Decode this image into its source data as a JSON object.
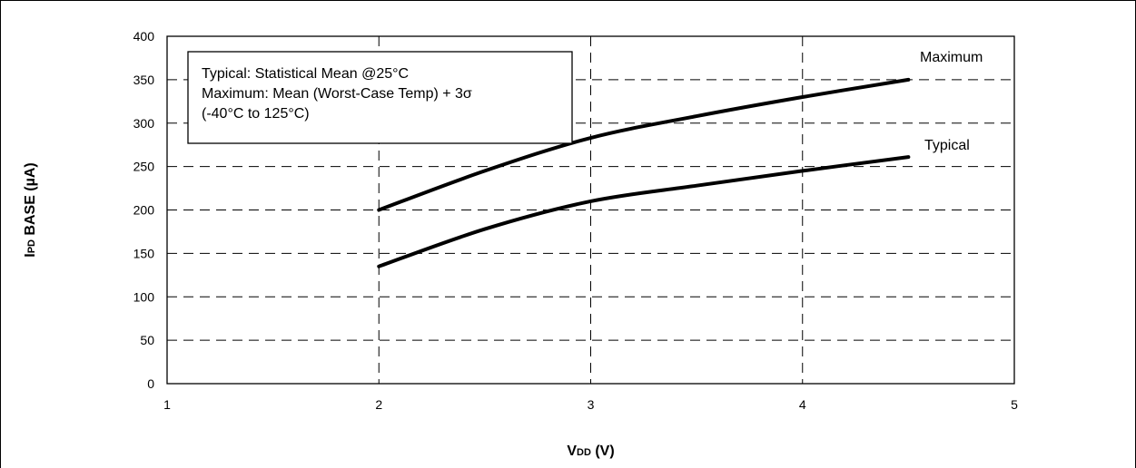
{
  "chart_data": {
    "type": "line",
    "title": "",
    "xlabel": {
      "main": "V",
      "sub": "DD",
      "unit": " (V)"
    },
    "ylabel": {
      "main": "I",
      "sub": "PD",
      "rest": " BASE (µA)"
    },
    "xlim": [
      1,
      5
    ],
    "ylim": [
      0,
      400
    ],
    "xticks": [
      "1",
      "2",
      "3",
      "4",
      "5"
    ],
    "yticks": [
      "0",
      "50",
      "100",
      "150",
      "200",
      "250",
      "300",
      "350",
      "400"
    ],
    "grid": true,
    "grid_style": "dashed",
    "series": [
      {
        "name": "Maximum",
        "x": [
          2.0,
          2.5,
          3.0,
          3.5,
          4.0,
          4.5
        ],
        "y": [
          200,
          245,
          283,
          308,
          330,
          350
        ]
      },
      {
        "name": "Typical",
        "x": [
          2.0,
          2.5,
          3.0,
          3.5,
          4.0,
          4.5
        ],
        "y": [
          135,
          178,
          210,
          228,
          245,
          261
        ]
      }
    ],
    "annotation": [
      "Typical: Statistical Mean @25°C",
      "Maximum: Mean (Worst-Case Temp) + 3σ",
      "(-40°C to 125°C)"
    ],
    "colors": {
      "line": "#000000",
      "grid": "#000000"
    }
  }
}
